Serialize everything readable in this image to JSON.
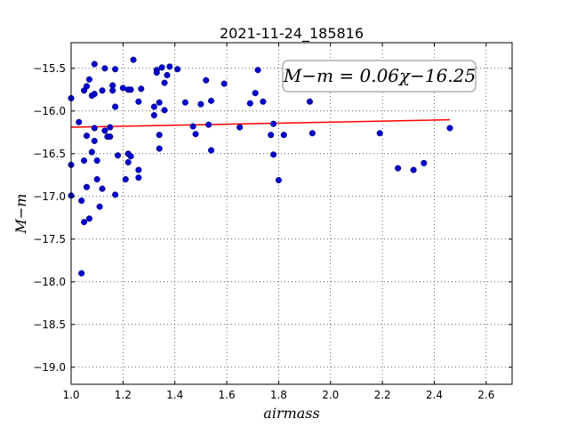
{
  "chart_data": {
    "type": "scatter",
    "title": "2021-11-24_185816",
    "xlabel": "airmass",
    "ylabel": "M−m",
    "xlim": [
      1.0,
      2.7
    ],
    "ylim": [
      -15.2,
      -19.2
    ],
    "y_axis_inverted": true,
    "grid": true,
    "grid_style": "dotted",
    "x_ticks": [
      1.0,
      1.2,
      1.4,
      1.6,
      1.8,
      2.0,
      2.2,
      2.4,
      2.6
    ],
    "x_tick_labels": [
      "1.0",
      "1.2",
      "1.4",
      "1.6",
      "1.8",
      "2.0",
      "2.2",
      "2.4",
      "2.6"
    ],
    "y_ticks": [
      -15.5,
      -16.0,
      -16.5,
      -17.0,
      -17.5,
      -18.0,
      -18.5,
      -19.0
    ],
    "y_tick_labels": [
      "−15.5",
      "−16.0",
      "−16.5",
      "−17.0",
      "−17.5",
      "−18.0",
      "−18.5",
      "−19.0"
    ],
    "annotation": "M−m = 0.06χ−16.25",
    "annotation_placement": "top-right",
    "marker_color": "#0000cc",
    "fit_line_color": "#ff0000",
    "fit": {
      "slope": 0.06,
      "intercept": -16.25,
      "x_range": [
        1.0,
        2.46
      ]
    },
    "points": [
      [
        1.0,
        -15.85
      ],
      [
        1.0,
        -16.63
      ],
      [
        1.0,
        -16.99
      ],
      [
        1.03,
        -16.13
      ],
      [
        1.04,
        -17.05
      ],
      [
        1.04,
        -17.9
      ],
      [
        1.05,
        -15.76
      ],
      [
        1.05,
        -16.58
      ],
      [
        1.05,
        -17.3
      ],
      [
        1.06,
        -15.71
      ],
      [
        1.06,
        -16.29
      ],
      [
        1.06,
        -16.89
      ],
      [
        1.07,
        -15.63
      ],
      [
        1.07,
        -17.26
      ],
      [
        1.08,
        -15.82
      ],
      [
        1.08,
        -16.48
      ],
      [
        1.09,
        -15.45
      ],
      [
        1.09,
        -15.8
      ],
      [
        1.09,
        -16.2
      ],
      [
        1.09,
        -16.35
      ],
      [
        1.1,
        -16.58
      ],
      [
        1.1,
        -16.8
      ],
      [
        1.11,
        -17.12
      ],
      [
        1.12,
        -15.76
      ],
      [
        1.12,
        -16.91
      ],
      [
        1.13,
        -15.5
      ],
      [
        1.13,
        -16.23
      ],
      [
        1.14,
        -16.3
      ],
      [
        1.15,
        -16.3
      ],
      [
        1.15,
        -16.19
      ],
      [
        1.16,
        -15.7
      ],
      [
        1.16,
        -15.76
      ],
      [
        1.17,
        -15.51
      ],
      [
        1.17,
        -15.95
      ],
      [
        1.17,
        -16.98
      ],
      [
        1.18,
        -16.52
      ],
      [
        1.2,
        -15.73
      ],
      [
        1.21,
        -16.8
      ],
      [
        1.22,
        -15.75
      ],
      [
        1.22,
        -16.5
      ],
      [
        1.22,
        -16.6
      ],
      [
        1.23,
        -15.75
      ],
      [
        1.23,
        -16.53
      ],
      [
        1.24,
        -15.4
      ],
      [
        1.26,
        -15.89
      ],
      [
        1.26,
        -16.69
      ],
      [
        1.26,
        -16.78
      ],
      [
        1.27,
        -15.74
      ],
      [
        1.32,
        -15.95
      ],
      [
        1.32,
        -16.05
      ],
      [
        1.33,
        -15.52
      ],
      [
        1.33,
        -15.55
      ],
      [
        1.34,
        -15.9
      ],
      [
        1.34,
        -16.28
      ],
      [
        1.34,
        -16.44
      ],
      [
        1.35,
        -15.49
      ],
      [
        1.36,
        -15.99
      ],
      [
        1.36,
        -15.67
      ],
      [
        1.37,
        -15.58
      ],
      [
        1.38,
        -15.48
      ],
      [
        1.41,
        -15.51
      ],
      [
        1.44,
        -15.9
      ],
      [
        1.47,
        -16.18
      ],
      [
        1.48,
        -16.27
      ],
      [
        1.5,
        -15.92
      ],
      [
        1.52,
        -15.64
      ],
      [
        1.53,
        -16.16
      ],
      [
        1.54,
        -15.88
      ],
      [
        1.54,
        -16.46
      ],
      [
        1.59,
        -15.68
      ],
      [
        1.65,
        -16.19
      ],
      [
        1.69,
        -15.91
      ],
      [
        1.71,
        -15.79
      ],
      [
        1.72,
        -15.52
      ],
      [
        1.74,
        -15.89
      ],
      [
        1.77,
        -16.28
      ],
      [
        1.78,
        -16.51
      ],
      [
        1.78,
        -16.15
      ],
      [
        1.8,
        -16.81
      ],
      [
        1.82,
        -16.28
      ],
      [
        1.92,
        -15.89
      ],
      [
        1.93,
        -16.26
      ],
      [
        2.19,
        -16.26
      ],
      [
        2.26,
        -16.67
      ],
      [
        2.32,
        -16.69
      ],
      [
        2.36,
        -16.61
      ],
      [
        2.46,
        -16.2
      ]
    ]
  }
}
